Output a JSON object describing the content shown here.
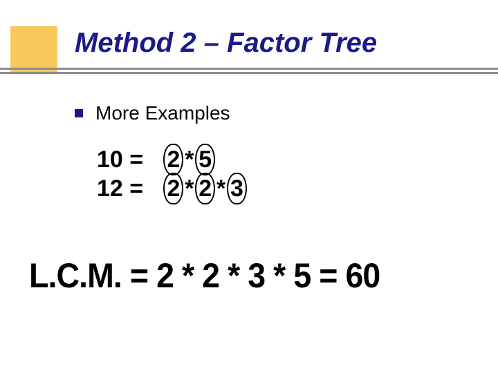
{
  "title": "Method 2 – Factor Tree",
  "bullet": "More Examples",
  "colors": {
    "accent_box": "#f6c95a",
    "title_color": "#1a1a8a",
    "bullet_color": "#1a1a8a",
    "rule_color": "#8c8c8c",
    "text_color": "#000000",
    "background": "#ffffff"
  },
  "typography": {
    "title_fontsize": 40,
    "title_style": "bold italic",
    "bullet_fontsize": 28,
    "factor_fontsize": 34,
    "lcm_fontsize": 50,
    "title_font": "Verdana",
    "math_font": "Arial Narrow"
  },
  "factorizations": [
    {
      "lhs": "10",
      "tokens": [
        {
          "text": "2",
          "circled": true
        },
        {
          "text": "*",
          "circled": false
        },
        {
          "text": "5",
          "circled": true
        }
      ]
    },
    {
      "lhs": "12",
      "tokens": [
        {
          "text": "2",
          "circled": true
        },
        {
          "text": "*",
          "circled": false
        },
        {
          "text": "2",
          "circled": true
        },
        {
          "text": "*",
          "circled": false
        },
        {
          "text": "3",
          "circled": true
        }
      ]
    }
  ],
  "lcm": {
    "label": "L.C.M.",
    "factors": [
      "2",
      "2",
      "3",
      "5"
    ],
    "result": "60",
    "rendered": "L.C.M. = 2 * 2 * 3 * 5 = 60"
  }
}
